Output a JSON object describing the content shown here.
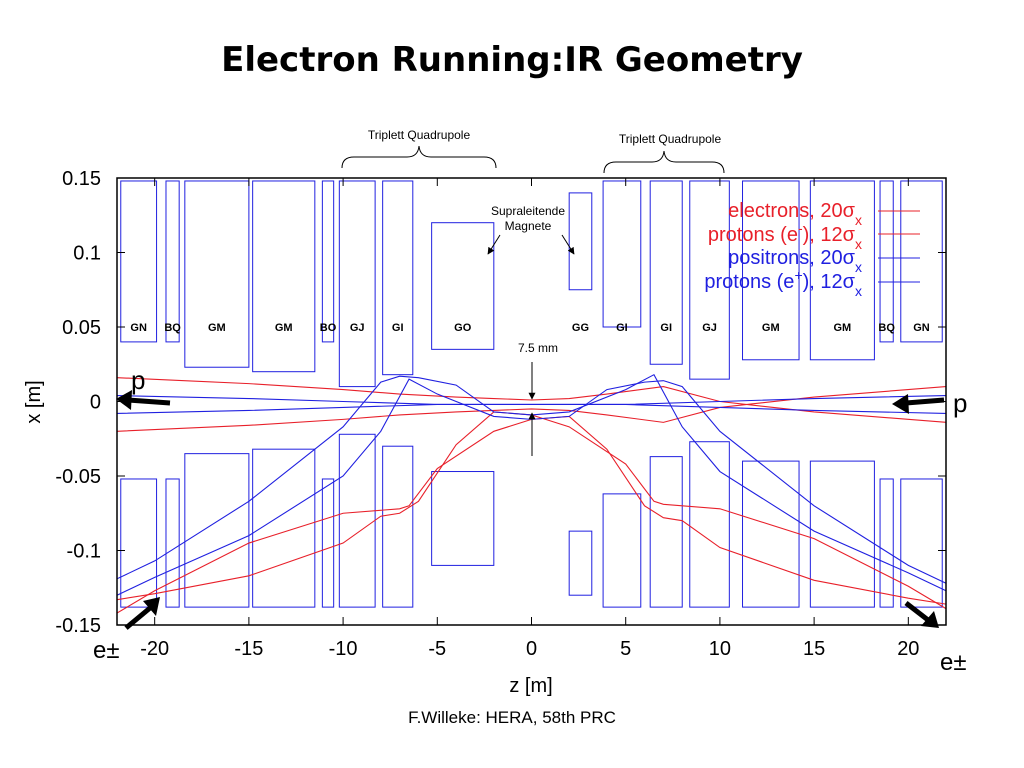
{
  "slide": {
    "title": "Electron Running:IR Geometry",
    "footer": "F.Willeke: HERA, 58th PRC"
  },
  "colors": {
    "red": "#e8202a",
    "blue": "#2020e0",
    "black": "#000000"
  },
  "chart_data": {
    "type": "line",
    "title": "",
    "xlabel": "z [m]",
    "ylabel": "x [m]",
    "xlim": [
      -22,
      22
    ],
    "ylim": [
      -0.15,
      0.15
    ],
    "xticks": [
      -20,
      -15,
      -10,
      -5,
      0,
      5,
      10,
      15,
      20
    ],
    "xtick_labels": [
      "-20",
      "-15",
      "-10",
      "-5",
      "0",
      "5",
      "10",
      "15",
      "20"
    ],
    "yticks": [
      0.15,
      0.1,
      0.05,
      0,
      -0.05,
      -0.1,
      -0.15
    ],
    "ytick_labels": [
      "0.15",
      "0.1",
      "0.05",
      "0",
      "-0.05",
      "-0.1",
      "-0.15"
    ],
    "legend": {
      "placement": "top-right",
      "entries": [
        {
          "text": "electrons, 20σx",
          "html": "electrons, 20σ<sub>x</sub>",
          "color": "red"
        },
        {
          "text": "protons (e-), 12σx",
          "html": "protons (e<sup>-</sup>), 12σ<sub>x</sub>",
          "color": "red"
        },
        {
          "text": "positrons, 20σx",
          "html": "positrons, 20σ<sub>x</sub>",
          "color": "blue"
        },
        {
          "text": "protons (e+), 12σx",
          "html": "protons (e<sup>+</sup>), 12σ<sub>x</sub>",
          "color": "blue"
        }
      ]
    },
    "magnets": [
      {
        "label": "GN",
        "z1": -21.8,
        "z2": -19.9,
        "x1": 0.04,
        "x2": 0.148
      },
      {
        "label": "BQ",
        "z1": -19.4,
        "z2": -18.7,
        "x1": 0.04,
        "x2": 0.148
      },
      {
        "label": "GM",
        "z1": -18.4,
        "z2": -15.0,
        "x1": 0.023,
        "x2": 0.148
      },
      {
        "label": "GM",
        "z1": -14.8,
        "z2": -11.5,
        "x1": 0.02,
        "x2": 0.148
      },
      {
        "label": "BO",
        "z1": -11.1,
        "z2": -10.5,
        "x1": 0.04,
        "x2": 0.148
      },
      {
        "label": "GJ",
        "z1": -10.2,
        "z2": -8.3,
        "x1": 0.01,
        "x2": 0.148
      },
      {
        "label": "GI",
        "z1": -7.9,
        "z2": -6.3,
        "x1": 0.018,
        "x2": 0.148
      },
      {
        "label": "GO",
        "z1": -5.3,
        "z2": -2.0,
        "x1": 0.035,
        "x2": 0.12
      },
      {
        "label": "GG",
        "z1": 2.0,
        "z2": 3.2,
        "x1": 0.075,
        "x2": 0.14
      },
      {
        "label": "GI",
        "z1": 3.8,
        "z2": 5.8,
        "x1": 0.05,
        "x2": 0.148
      },
      {
        "label": "GI",
        "z1": 6.3,
        "z2": 8.0,
        "x1": 0.025,
        "x2": 0.148
      },
      {
        "label": "GJ",
        "z1": 8.4,
        "z2": 10.5,
        "x1": 0.015,
        "x2": 0.148
      },
      {
        "label": "GM",
        "z1": 11.2,
        "z2": 14.2,
        "x1": 0.028,
        "x2": 0.148
      },
      {
        "label": "GM",
        "z1": 14.8,
        "z2": 18.2,
        "x1": 0.028,
        "x2": 0.148
      },
      {
        "label": "BQ",
        "z1": 18.5,
        "z2": 19.2,
        "x1": 0.04,
        "x2": 0.148
      },
      {
        "label": "GN",
        "z1": 19.6,
        "z2": 21.8,
        "x1": 0.04,
        "x2": 0.148
      }
    ],
    "annotations": {
      "quad_left": "Triplett Quadrupole",
      "quad_right": "Triplett Quadrupole",
      "supra_line1": "Supraleitende",
      "supra_line2": "Magnete",
      "gap": "7.5 mm",
      "p_left": "p",
      "p_right": "p",
      "e_left": "e±",
      "e_right": "e±"
    },
    "series": [
      {
        "name": "electrons, 20σx",
        "color": "red",
        "x": [
          -22,
          -15,
          -10,
          -7,
          -4,
          -2,
          0,
          2,
          4,
          7,
          10,
          15,
          22
        ],
        "y": [
          0.016,
          0.012,
          0.008,
          0.005,
          0.003,
          0.002,
          0.001,
          0.002,
          0.005,
          0.01,
          0.0,
          -0.007,
          -0.014
        ]
      },
      {
        "name": "protons (e-), 12σx",
        "color": "red",
        "x": [
          -22,
          -20,
          -15,
          -10,
          -7,
          -6.5,
          -5,
          -2,
          0,
          2,
          4,
          6,
          7,
          8,
          10,
          15,
          20,
          22
        ],
        "y": [
          -0.142,
          -0.127,
          -0.095,
          -0.075,
          -0.072,
          -0.07,
          -0.045,
          -0.02,
          -0.012,
          -0.01,
          -0.032,
          -0.07,
          -0.078,
          -0.08,
          -0.098,
          -0.12,
          -0.132,
          -0.136
        ]
      },
      {
        "name": "positrons, 20σx",
        "color": "blue",
        "x": [
          -22,
          -15,
          -10,
          -5,
          0,
          5,
          10,
          15,
          22
        ],
        "y": [
          -0.008,
          -0.006,
          -0.004,
          -0.002,
          -0.002,
          -0.002,
          -0.004,
          -0.006,
          -0.008
        ]
      },
      {
        "name": "protons (e+), 12σx",
        "color": "blue",
        "x": [
          -22,
          -20,
          -15,
          -10,
          -8,
          -6.5,
          -5,
          -2,
          0,
          2,
          4,
          6,
          7,
          8,
          10,
          15,
          20,
          22
        ],
        "y": [
          -0.13,
          -0.118,
          -0.09,
          -0.05,
          -0.02,
          0.015,
          0.005,
          -0.01,
          -0.012,
          -0.01,
          0.008,
          0.013,
          0.014,
          0.01,
          -0.02,
          -0.07,
          -0.11,
          -0.122
        ]
      }
    ]
  }
}
